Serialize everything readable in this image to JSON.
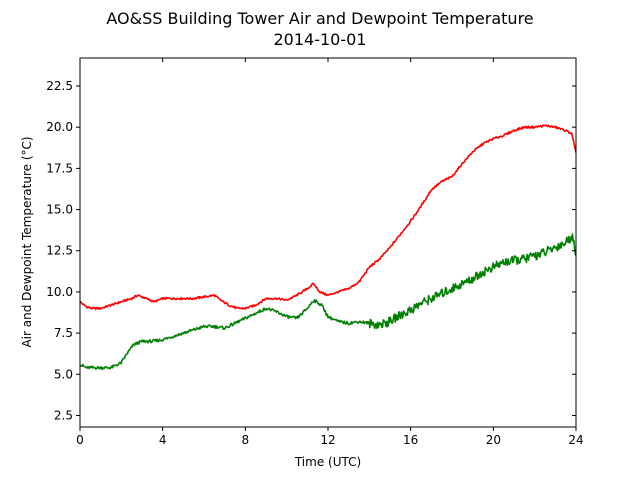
{
  "chart_data": {
    "type": "line",
    "title": "AO&SS Building Tower Air and Dewpoint Temperature",
    "subtitle": "2014-10-01",
    "xlabel": "Time (UTC)",
    "ylabel": "Air and Dewpoint Temperature (°C)",
    "xlim": [
      0,
      24
    ],
    "ylim": [
      1.8,
      24.2
    ],
    "xticks": [
      0,
      4,
      8,
      12,
      16,
      20,
      24
    ],
    "yticks": [
      2.5,
      5.0,
      7.5,
      10.0,
      12.5,
      15.0,
      17.5,
      20.0,
      22.5
    ],
    "grid": false,
    "series": [
      {
        "color": "#ff0000",
        "x": [
          0,
          0.3,
          0.6,
          1,
          1.5,
          2,
          2.5,
          2.8,
          3.2,
          3.6,
          4,
          4.5,
          5,
          5.5,
          6,
          6.5,
          6.8,
          7.2,
          7.6,
          8,
          8.5,
          9,
          9.5,
          10,
          10.5,
          11,
          11.3,
          11.6,
          12,
          12.5,
          13,
          13.5,
          14,
          14.5,
          15,
          15.5,
          16,
          16.5,
          17,
          17.5,
          18,
          18.5,
          19,
          19.5,
          20,
          20.5,
          21,
          21.5,
          22,
          22.5,
          23,
          23.5,
          23.8,
          24
        ],
        "values": [
          9.4,
          9.1,
          9.0,
          9.0,
          9.2,
          9.4,
          9.6,
          9.8,
          9.6,
          9.4,
          9.6,
          9.6,
          9.6,
          9.6,
          9.7,
          9.8,
          9.5,
          9.2,
          9.0,
          9.0,
          9.2,
          9.6,
          9.6,
          9.5,
          9.8,
          10.2,
          10.5,
          10.0,
          9.8,
          10.0,
          10.2,
          10.6,
          11.5,
          12.0,
          12.7,
          13.5,
          14.3,
          15.2,
          16.2,
          16.7,
          17.0,
          17.8,
          18.5,
          19.0,
          19.3,
          19.5,
          19.8,
          20.0,
          20.0,
          20.1,
          20.0,
          19.8,
          19.6,
          18.4
        ]
      },
      {
        "color": "#008000",
        "x": [
          0,
          0.3,
          0.6,
          1,
          1.5,
          2,
          2.3,
          2.6,
          3,
          3.5,
          4,
          4.5,
          5,
          5.5,
          6,
          6.5,
          7,
          7.5,
          8,
          8.5,
          9,
          9.5,
          10,
          10.5,
          11,
          11.3,
          11.7,
          12,
          12.5,
          13,
          13.5,
          14,
          14.5,
          15,
          15.5,
          16,
          16.5,
          17,
          17.5,
          18,
          18.5,
          19,
          19.5,
          20,
          20.5,
          21,
          21.5,
          22,
          22.5,
          23,
          23.5,
          23.8,
          24
        ],
        "values": [
          5.6,
          5.4,
          5.4,
          5.4,
          5.4,
          5.7,
          6.3,
          6.8,
          7.0,
          7.0,
          7.1,
          7.3,
          7.5,
          7.7,
          7.9,
          7.9,
          7.8,
          8.1,
          8.4,
          8.7,
          9.0,
          8.8,
          8.5,
          8.4,
          9.0,
          9.5,
          9.2,
          8.5,
          8.2,
          8.1,
          8.2,
          8.1,
          8.0,
          8.2,
          8.6,
          8.9,
          9.3,
          9.6,
          9.9,
          10.2,
          10.5,
          10.8,
          11.2,
          11.5,
          11.8,
          11.9,
          12.0,
          12.2,
          12.4,
          12.7,
          13.0,
          13.4,
          12.4
        ]
      }
    ]
  }
}
